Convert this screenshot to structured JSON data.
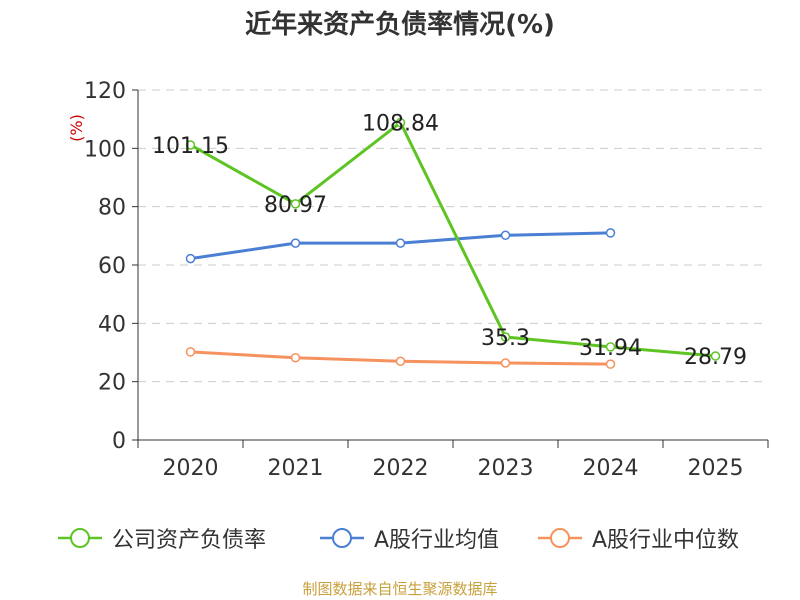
{
  "chart_data": {
    "type": "line",
    "title": "近年来资产负债率情况(%)",
    "ylabel": "(%)",
    "xlabel": "",
    "categories": [
      "2020",
      "2021",
      "2022",
      "2023",
      "2024",
      "2025"
    ],
    "ylim": [
      0,
      120
    ],
    "yticks": [
      0,
      20,
      40,
      60,
      80,
      100,
      120
    ],
    "grid": true,
    "legend_position": "bottom",
    "series": [
      {
        "name": "公司资产负债率",
        "color": "#5ec424",
        "values": [
          101.15,
          80.97,
          108.84,
          35.3,
          31.94,
          28.79
        ],
        "data_labels": [
          "101.15",
          "80.97",
          "108.84",
          "35.3",
          "31.94",
          "28.79"
        ]
      },
      {
        "name": "A股行业均值",
        "color": "#4a7fd4",
        "values": [
          62.2,
          67.5,
          67.5,
          70.2,
          71.0,
          null
        ]
      },
      {
        "name": "A股行业中位数",
        "color": "#f5925e",
        "values": [
          30.2,
          28.2,
          27.0,
          26.4,
          26.0,
          null
        ]
      }
    ]
  },
  "source_note": "制图数据来自恒生聚源数据库"
}
